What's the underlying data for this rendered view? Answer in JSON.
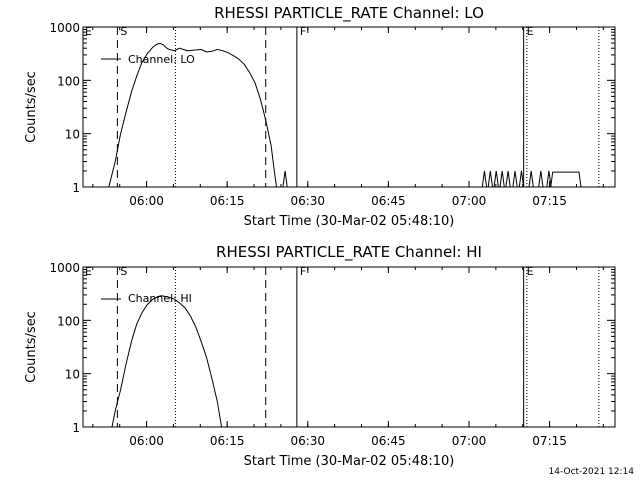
{
  "footer": {
    "timestamp": "14-Oct-2021 12:14"
  },
  "colors": {
    "background": "#ffffff",
    "foreground": "#000000"
  },
  "chart_data": [
    {
      "type": "line",
      "title": "RHESSI PARTICLE_RATE Channel: LO",
      "xlabel": "Start Time (30-Mar-02 05:48:10)",
      "ylabel": "Counts/sec",
      "yscale": "log",
      "ylim": [
        1,
        1000
      ],
      "xlim_minutes": [
        0,
        99
      ],
      "x_tick_labels": [
        "06:00",
        "06:15",
        "06:30",
        "06:45",
        "07:00",
        "07:15"
      ],
      "x_tick_minutes": [
        11.83,
        26.83,
        41.83,
        56.83,
        71.83,
        86.83
      ],
      "y_tick_labels": [
        "1",
        "10",
        "100",
        "1000"
      ],
      "y_tick_values": [
        1,
        10,
        100,
        1000
      ],
      "legend": {
        "label": "Channel: LO",
        "position": "top-left"
      },
      "markers": [
        {
          "label": "S",
          "minute": 6.4,
          "style": "dashed"
        },
        {
          "label": "",
          "minute": 17.2,
          "style": "dotted"
        },
        {
          "label": "",
          "minute": 34.0,
          "style": "dashed"
        },
        {
          "label": "F",
          "minute": 39.8,
          "style": "solid"
        },
        {
          "label": "E",
          "minute": 82.0,
          "style": "solid"
        },
        {
          "label": "",
          "minute": 82.6,
          "style": "dotted"
        },
        {
          "label": "",
          "minute": 96.0,
          "style": "dotted"
        }
      ],
      "series": [
        {
          "name": "Channel: LO",
          "points": [
            [
              4.8,
              1
            ],
            [
              6.0,
              3
            ],
            [
              7.0,
              10
            ],
            [
              8.0,
              25
            ],
            [
              9.0,
              60
            ],
            [
              10.0,
              120
            ],
            [
              11.0,
              220
            ],
            [
              12.0,
              320
            ],
            [
              13.0,
              420
            ],
            [
              13.8,
              480
            ],
            [
              14.4,
              490
            ],
            [
              15.0,
              460
            ],
            [
              15.5,
              410
            ],
            [
              16.0,
              380
            ],
            [
              17.0,
              360
            ],
            [
              18.0,
              400
            ],
            [
              18.6,
              380
            ],
            [
              19.5,
              360
            ],
            [
              21.0,
              370
            ],
            [
              22.0,
              380
            ],
            [
              23.0,
              340
            ],
            [
              24.0,
              350
            ],
            [
              25.0,
              380
            ],
            [
              26.0,
              360
            ],
            [
              27.0,
              330
            ],
            [
              28.0,
              290
            ],
            [
              29.0,
              250
            ],
            [
              30.0,
              200
            ],
            [
              31.0,
              140
            ],
            [
              32.0,
              90
            ],
            [
              33.0,
              45
            ],
            [
              34.0,
              18
            ],
            [
              35.0,
              6
            ],
            [
              35.6,
              2
            ],
            [
              36.0,
              1
            ]
          ],
          "spikes_at_1_counts": [
            [
              37.2,
              37.6,
              38.0
            ],
            [
              74.3,
              74.7,
              75.1
            ],
            [
              75.4,
              75.8,
              76.2
            ],
            [
              76.5,
              76.9,
              77.3
            ],
            [
              77.6,
              78.0,
              78.4
            ],
            [
              78.7,
              79.1,
              79.5
            ],
            [
              80.0,
              80.4,
              80.8
            ],
            [
              81.2,
              81.6,
              82.0
            ],
            [
              83.0,
              83.4,
              83.8
            ],
            [
              84.8,
              85.2,
              85.6
            ],
            [
              86.3,
              86.7,
              87.1
            ]
          ],
          "plateaus": [
            {
              "from_minute": 87.4,
              "to_minute": 92.3,
              "value": 1.9
            }
          ]
        }
      ]
    },
    {
      "type": "line",
      "title": "RHESSI PARTICLE_RATE Channel: HI",
      "xlabel": "Start Time (30-Mar-02 05:48:10)",
      "ylabel": "Counts/sec",
      "yscale": "log",
      "ylim": [
        1,
        1000
      ],
      "xlim_minutes": [
        0,
        99
      ],
      "x_tick_labels": [
        "06:00",
        "06:15",
        "06:30",
        "06:45",
        "07:00",
        "07:15"
      ],
      "x_tick_minutes": [
        11.83,
        26.83,
        41.83,
        56.83,
        71.83,
        86.83
      ],
      "y_tick_labels": [
        "1",
        "10",
        "100",
        "1000"
      ],
      "y_tick_values": [
        1,
        10,
        100,
        1000
      ],
      "legend": {
        "label": "Channel: HI",
        "position": "top-left"
      },
      "markers": [
        {
          "label": "S",
          "minute": 6.4,
          "style": "dashed"
        },
        {
          "label": "",
          "minute": 17.2,
          "style": "dotted"
        },
        {
          "label": "",
          "minute": 34.0,
          "style": "dashed"
        },
        {
          "label": "F",
          "minute": 39.8,
          "style": "solid"
        },
        {
          "label": "E",
          "minute": 82.0,
          "style": "solid"
        },
        {
          "label": "",
          "minute": 82.6,
          "style": "dotted"
        },
        {
          "label": "",
          "minute": 96.0,
          "style": "dotted"
        }
      ],
      "series": [
        {
          "name": "Channel: HI",
          "points": [
            [
              5.4,
              1
            ],
            [
              6.0,
              2
            ],
            [
              7.0,
              5
            ],
            [
              8.0,
              15
            ],
            [
              9.0,
              40
            ],
            [
              10.0,
              85
            ],
            [
              11.0,
              140
            ],
            [
              12.0,
              200
            ],
            [
              13.0,
              250
            ],
            [
              14.0,
              280
            ],
            [
              14.5,
              290
            ],
            [
              15.0,
              285
            ],
            [
              16.0,
              270
            ],
            [
              17.0,
              250
            ],
            [
              18.0,
              210
            ],
            [
              19.0,
              170
            ],
            [
              20.0,
              120
            ],
            [
              21.0,
              75
            ],
            [
              22.0,
              40
            ],
            [
              23.0,
              20
            ],
            [
              24.0,
              8
            ],
            [
              25.0,
              3
            ],
            [
              25.8,
              1
            ]
          ],
          "spikes_at_1_counts": [],
          "plateaus": []
        }
      ]
    }
  ]
}
